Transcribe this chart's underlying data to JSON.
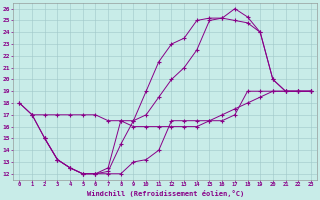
{
  "xlabel": "Windchill (Refroidissement éolien,°C)",
  "background_color": "#c8ece8",
  "line_color": "#880088",
  "xlim": [
    -0.5,
    23.5
  ],
  "ylim": [
    11.5,
    26.5
  ],
  "xticks": [
    0,
    1,
    2,
    3,
    4,
    5,
    6,
    7,
    8,
    9,
    10,
    11,
    12,
    13,
    14,
    15,
    16,
    17,
    18,
    19,
    20,
    21,
    22,
    23
  ],
  "yticks": [
    12,
    13,
    14,
    15,
    16,
    17,
    18,
    19,
    20,
    21,
    22,
    23,
    24,
    25,
    26
  ],
  "line1_x": [
    0,
    1,
    2,
    3,
    4,
    5,
    6,
    7,
    8,
    9,
    10,
    11,
    12,
    13,
    14,
    15,
    16,
    17,
    18,
    19,
    20,
    21,
    22,
    23
  ],
  "line1_y": [
    18.0,
    17.0,
    17.0,
    17.0,
    17.0,
    17.0,
    17.0,
    16.5,
    16.5,
    16.0,
    16.0,
    16.0,
    16.0,
    16.0,
    16.0,
    16.5,
    17.0,
    17.5,
    18.0,
    18.5,
    19.0,
    19.0,
    19.0,
    19.0
  ],
  "line2_x": [
    0,
    1,
    2,
    3,
    4,
    5,
    6,
    7,
    8,
    9,
    10,
    11,
    12,
    13,
    14,
    15,
    16,
    17,
    18,
    19,
    20,
    21,
    22,
    23
  ],
  "line2_y": [
    18.0,
    17.0,
    15.0,
    13.2,
    12.5,
    12.0,
    12.0,
    12.0,
    12.0,
    13.0,
    13.2,
    14.0,
    16.5,
    16.5,
    16.5,
    16.5,
    16.5,
    17.0,
    19.0,
    19.0,
    19.0,
    19.0,
    19.0,
    19.0
  ],
  "line3_x": [
    1,
    2,
    3,
    4,
    5,
    6,
    7,
    8,
    9,
    10,
    11,
    12,
    13,
    14,
    15,
    16,
    17,
    18,
    19,
    20,
    21,
    22,
    23
  ],
  "line3_y": [
    17.0,
    15.0,
    13.2,
    12.5,
    12.0,
    12.0,
    12.2,
    14.5,
    16.5,
    19.0,
    21.5,
    23.0,
    23.5,
    25.0,
    25.2,
    25.2,
    26.0,
    25.3,
    24.0,
    20.0,
    19.0,
    19.0,
    19.0
  ],
  "line4_x": [
    2,
    3,
    4,
    5,
    6,
    7,
    8,
    9,
    10,
    11,
    12,
    13,
    14,
    15,
    16,
    17,
    18,
    19,
    20,
    21,
    22,
    23
  ],
  "line4_y": [
    15.0,
    13.2,
    12.5,
    12.0,
    12.0,
    12.5,
    16.5,
    16.5,
    17.0,
    18.5,
    20.0,
    21.0,
    22.5,
    25.0,
    25.2,
    25.0,
    24.8,
    24.0,
    20.0,
    19.0,
    19.0,
    19.0
  ]
}
